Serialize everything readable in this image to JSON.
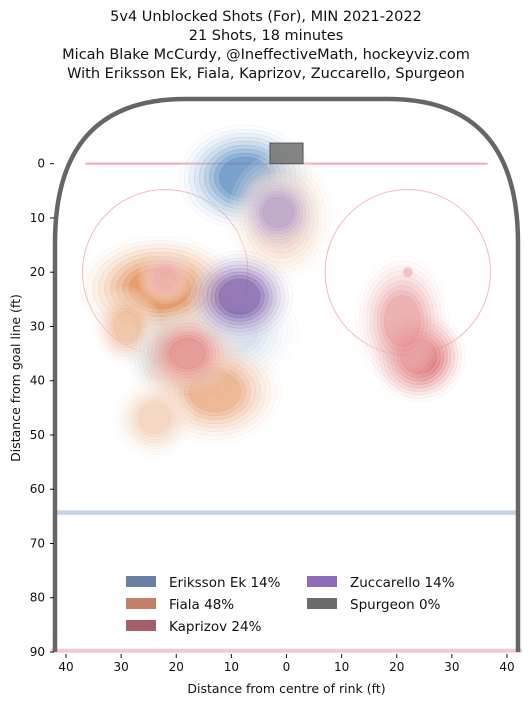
{
  "header": {
    "title": "5v4 Unblocked Shots (For), MIN 2021-2022",
    "line2": "21 Shots, 18 minutes",
    "line3": "Micah Blake McCurdy, @IneffectiveMath, hockeyviz.com",
    "line4": "With Eriksson Ek, Fiala, Kaprizov, Zuccarello, Spurgeon"
  },
  "chart_data": {
    "type": "heatmap",
    "title": "5v4 Unblocked Shots (For), MIN 2021-2022",
    "xlabel": "Distance from centre of rink (ft)",
    "ylabel": "Distance from goal line (ft)",
    "xlim": [
      42,
      -42
    ],
    "ylim": [
      90,
      -11
    ],
    "x_ticks": [
      40,
      30,
      20,
      10,
      0,
      10,
      20,
      30,
      40
    ],
    "x_tick_values": [
      40,
      30,
      20,
      10,
      0,
      -10,
      -20,
      -30,
      -40
    ],
    "y_ticks": [
      0,
      10,
      20,
      30,
      40,
      50,
      60,
      70,
      80,
      90
    ],
    "legend_position": "bottom-center",
    "series": [
      {
        "name": "Eriksson Ek 14%",
        "color": "#6a7fa3",
        "ramp": "#2166ac",
        "hotspots": [
          {
            "x": 7.5,
            "y": 2.5,
            "sx": 5,
            "sy": 4,
            "w": 1.0
          },
          {
            "x": 20,
            "y": 34,
            "sx": 4,
            "sy": 4,
            "w": 0.55
          },
          {
            "x": 10,
            "y": 31,
            "sx": 5,
            "sy": 4,
            "w": 0.3
          }
        ]
      },
      {
        "name": "Fiala 48%",
        "color": "#c07f66",
        "ramp": "#d95f0e",
        "hotspots": [
          {
            "x": 23,
            "y": 23,
            "sx": 6,
            "sy": 4,
            "w": 1.0
          },
          {
            "x": 29,
            "y": 30,
            "sx": 2.5,
            "sy": 3,
            "w": 0.55
          },
          {
            "x": 18,
            "y": 36,
            "sx": 4,
            "sy": 4,
            "w": 0.8
          },
          {
            "x": 13,
            "y": 42,
            "sx": 5,
            "sy": 4,
            "w": 0.7
          },
          {
            "x": 24,
            "y": 47,
            "sx": 3,
            "sy": 3,
            "w": 0.4
          },
          {
            "x": 1,
            "y": 10,
            "sx": 4,
            "sy": 5,
            "w": 0.45
          }
        ]
      },
      {
        "name": "Kaprizov 24%",
        "color": "#a86068",
        "ramp": "#cb181d",
        "hotspots": [
          {
            "x": -24,
            "y": 35.5,
            "sx": 3.5,
            "sy": 3.5,
            "w": 1.0
          },
          {
            "x": -21,
            "y": 29,
            "sx": 3.5,
            "sy": 5,
            "w": 0.55
          },
          {
            "x": 18,
            "y": 35,
            "sx": 3.5,
            "sy": 3,
            "w": 0.6
          },
          {
            "x": 22,
            "y": 21,
            "sx": 2,
            "sy": 2,
            "w": 0.4
          }
        ]
      },
      {
        "name": "Zuccarello 14%",
        "color": "#8f6ab8",
        "ramp": "#54278f",
        "hotspots": [
          {
            "x": 8.5,
            "y": 24.5,
            "sx": 4,
            "sy": 3.5,
            "w": 1.0
          },
          {
            "x": 1.5,
            "y": 9,
            "sx": 3,
            "sy": 3,
            "w": 0.55
          }
        ]
      },
      {
        "name": "Spurgeon 0%",
        "color": "#6b6b6b",
        "ramp": "#555555",
        "hotspots": []
      }
    ]
  }
}
